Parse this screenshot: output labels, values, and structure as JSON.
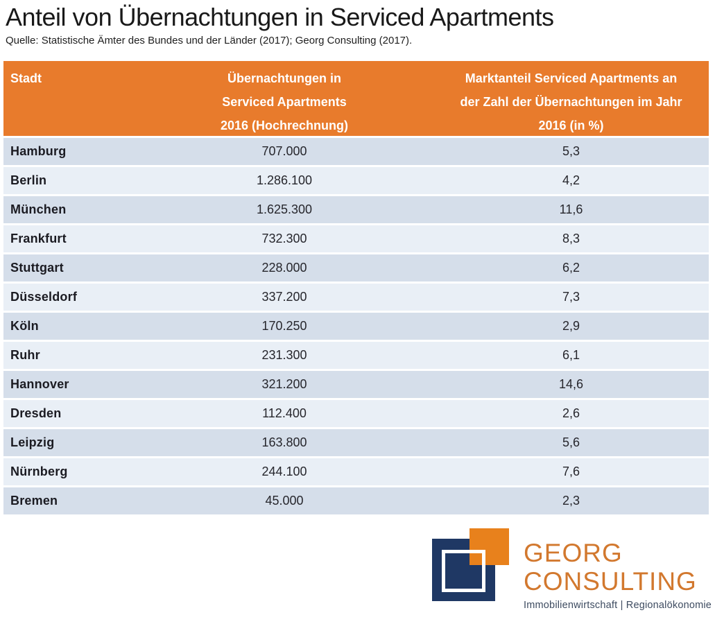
{
  "title": "Anteil von Übernachtungen in Serviced Apartments",
  "source": "Quelle: Statistische Ämter des Bundes und der Länder (2017); Georg Consulting (2017).",
  "colors": {
    "header_bg": "#E87B2C",
    "row_odd": "#D5DEEA",
    "row_even": "#E9EFF6",
    "logo_navy": "#1F3864",
    "logo_orange": "#E8811C",
    "logo_wordmark": "#D2782E"
  },
  "table": {
    "header": {
      "col1": "Stadt",
      "col2": [
        "Übernachtungen in",
        "Serviced Apartments",
        "2016 (Hochrechnung)"
      ],
      "col3": [
        "Marktanteil Serviced Apartments an",
        "der Zahl der Übernachtungen im Jahr",
        "2016 (in %)"
      ]
    },
    "rows": [
      {
        "city": "Hamburg",
        "nights": "707.000",
        "share": "5,3"
      },
      {
        "city": "Berlin",
        "nights": "1.286.100",
        "share": "4,2"
      },
      {
        "city": "München",
        "nights": "1.625.300",
        "share": "11,6"
      },
      {
        "city": "Frankfurt",
        "nights": "732.300",
        "share": "8,3"
      },
      {
        "city": "Stuttgart",
        "nights": "228.000",
        "share": "6,2"
      },
      {
        "city": "Düsseldorf",
        "nights": "337.200",
        "share": "7,3"
      },
      {
        "city": "Köln",
        "nights": "170.250",
        "share": "2,9"
      },
      {
        "city": "Ruhr",
        "nights": "231.300",
        "share": "6,1"
      },
      {
        "city": "Hannover",
        "nights": "321.200",
        "share": "14,6"
      },
      {
        "city": "Dresden",
        "nights": "112.400",
        "share": "2,6"
      },
      {
        "city": "Leipzig",
        "nights": "163.800",
        "share": "5,6"
      },
      {
        "city": "Nürnberg",
        "nights": "244.100",
        "share": "7,6"
      },
      {
        "city": "Bremen",
        "nights": "45.000",
        "share": "2,3"
      }
    ]
  },
  "chart_data": {
    "type": "table",
    "title": "Anteil von Übernachtungen in Serviced Apartments",
    "source": "Quelle: Statistische Ämter des Bundes und der Länder (2017); Georg Consulting (2017).",
    "columns": [
      "Stadt",
      "Übernachtungen in Serviced Apartments 2016 (Hochrechnung)",
      "Marktanteil Serviced Apartments an der Zahl der Übernachtungen im Jahr 2016 (in %)"
    ],
    "rows": [
      [
        "Hamburg",
        707000,
        5.3
      ],
      [
        "Berlin",
        1286100,
        4.2
      ],
      [
        "München",
        1625300,
        11.6
      ],
      [
        "Frankfurt",
        732300,
        8.3
      ],
      [
        "Stuttgart",
        228000,
        6.2
      ],
      [
        "Düsseldorf",
        337200,
        7.3
      ],
      [
        "Köln",
        170250,
        2.9
      ],
      [
        "Ruhr",
        231300,
        6.1
      ],
      [
        "Hannover",
        321200,
        14.6
      ],
      [
        "Dresden",
        112400,
        2.6
      ],
      [
        "Leipzig",
        163800,
        5.6
      ],
      [
        "Nürnberg",
        244100,
        7.6
      ],
      [
        "Bremen",
        45000,
        2.3
      ]
    ]
  },
  "logo": {
    "word1": "GEORG",
    "word2": "CONSULTING",
    "tagline": "Immobilienwirtschaft | Regionalökonomie"
  }
}
